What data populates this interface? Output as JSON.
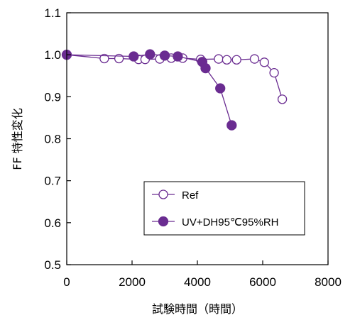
{
  "chart_data": {
    "type": "scatter",
    "title": "",
    "xlabel": "試験時間（時間）",
    "ylabel": "FF 特性変化",
    "xlim": [
      0,
      8000
    ],
    "ylim": [
      0.5,
      1.1
    ],
    "xticks": [
      "0",
      "2000",
      "4000",
      "6000",
      "8000"
    ],
    "yticks": [
      "0.5",
      "0.6",
      "0.7",
      "0.8",
      "0.9",
      "1.0",
      "1.1"
    ],
    "grid": false,
    "legend_position": "lower-right",
    "series_color": "#6a2c91",
    "series": [
      {
        "name": "Ref",
        "marker": "open-circle",
        "x": [
          0,
          1150,
          1600,
          2200,
          2400,
          2850,
          3200,
          3550,
          4100,
          4650,
          4900,
          5200,
          5750,
          6050,
          6350,
          6600
        ],
        "y": [
          1.0,
          0.991,
          0.991,
          0.989,
          0.989,
          0.99,
          0.992,
          0.992,
          0.989,
          0.99,
          0.988,
          0.988,
          0.99,
          0.982,
          0.957,
          0.894
        ]
      },
      {
        "name": "UV+DH95℃95%RH",
        "marker": "filled-circle",
        "x": [
          0,
          2050,
          2550,
          3000,
          3400,
          4150,
          4250,
          4700,
          5050
        ],
        "y": [
          1.0,
          0.996,
          1.001,
          0.998,
          0.996,
          0.983,
          0.968,
          0.92,
          0.832
        ]
      }
    ]
  }
}
